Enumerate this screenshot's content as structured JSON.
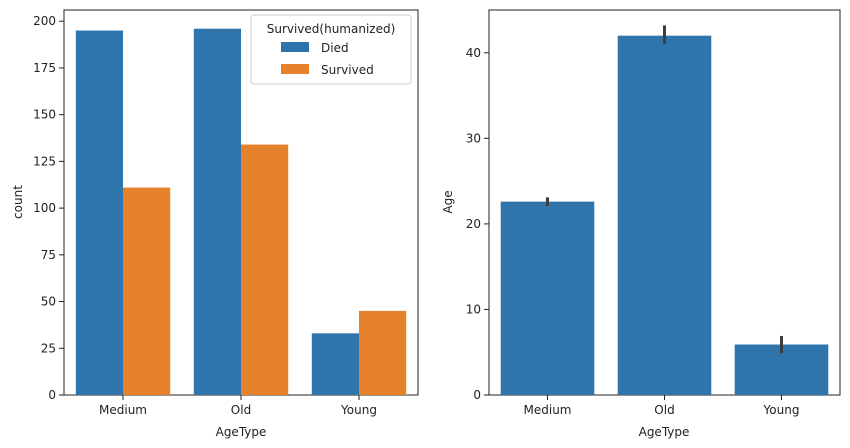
{
  "chart_data": [
    {
      "type": "bar",
      "xlabel": "AgeType",
      "ylabel": "count",
      "categories": [
        "Medium",
        "Old",
        "Young"
      ],
      "ylim": [
        0,
        206
      ],
      "yticks": [
        0,
        25,
        50,
        75,
        100,
        125,
        150,
        175,
        200
      ],
      "ytick_labels": [
        "0",
        "25",
        "50",
        "75",
        "100",
        "125",
        "150",
        "175",
        "200"
      ],
      "legend": {
        "title": "Survived(humanized)",
        "placement": "top-right"
      },
      "series": [
        {
          "name": "Died",
          "color": "#2f75ac",
          "values": [
            195,
            196,
            33
          ]
        },
        {
          "name": "Survived",
          "color": "#e6822c",
          "values": [
            111,
            134,
            45
          ]
        }
      ],
      "grid": false
    },
    {
      "type": "bar",
      "xlabel": "AgeType",
      "ylabel": "Age",
      "categories": [
        "Medium",
        "Old",
        "Young"
      ],
      "ylim": [
        0,
        45
      ],
      "yticks": [
        0,
        10,
        20,
        30,
        40
      ],
      "ytick_labels": [
        "0",
        "10",
        "20",
        "30",
        "40"
      ],
      "series": [
        {
          "color": "#2f75ac",
          "values": [
            22.6,
            42.0,
            5.9
          ],
          "error_low": [
            22.1,
            41.0,
            4.9
          ],
          "error_high": [
            23.1,
            43.2,
            6.9
          ]
        }
      ],
      "grid": false
    }
  ]
}
